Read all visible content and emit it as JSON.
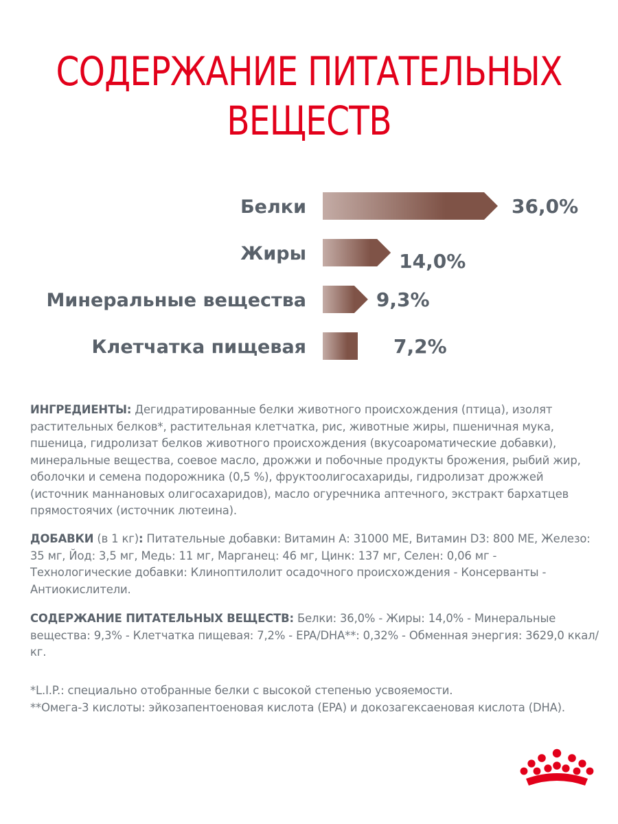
{
  "title": {
    "line1": "СОДЕРЖАНИЕ ПИТАТЕЛЬНЫХ",
    "line2": "ВЕЩЕСТВ"
  },
  "chart_data": {
    "type": "bar",
    "orientation": "horizontal",
    "categories": [
      "Белки",
      "Жиры",
      "Минеральные вещества",
      "Клетчатка пищевая"
    ],
    "values": [
      36.0,
      14.0,
      9.3,
      7.2
    ],
    "value_labels": [
      "36,0%",
      "14,0%",
      "9,3%",
      "7,2%"
    ],
    "unit": "%",
    "title": "СОДЕРЖАНИЕ ПИТАТЕЛЬНЫХ ВЕЩЕСТВ",
    "xlabel": "",
    "ylabel": "",
    "grid": false,
    "bar_gradient": [
      "#c4aca6",
      "#7f5347"
    ],
    "label_color": "#59616a"
  },
  "ingredients": {
    "label": "ИНГРЕДИЕНТЫ:",
    "text": " Дегидратированные белки животного происхождения (птица), изолят растительных белков*, растительная клетчатка, рис, животные жиры, пшеничная мука, пшеница, гидролизат белков животного происхождения (вкусоароматические добавки), минеральные вещества, соевое масло, дрожжи и побочные продукты брожения, рыбий жир, оболочки и семена подорожника (0,5 %), фруктоолигосахариды, гидролизат дрожжей (источник маннановых олигосахаридов), масло огуречника аптечного, экстракт бархатцев прямостоячих (источник лютеина)."
  },
  "additives": {
    "label": "ДОБАВКИ",
    "qualifier": " (в 1 кг)",
    "colon": ":",
    "text": " Питательные добавки: Витамин А: 31000 МЕ, Витамин D3: 800 МЕ, Железо: 35 мг, Йод: 3,5 мг, Медь: 11 мг, Марганец: 46 мг, Цинк: 137 мг, Селен: 0,06 мг - Технологические добавки: Клиноптилолит осадочного происхождения - Консерванты - Антиокислители."
  },
  "nutrients": {
    "label": "СОДЕРЖАНИЕ ПИТАТЕЛЬНЫХ ВЕЩЕСТВ:",
    "text": " Белки: 36,0% - Жиры: 14,0% - Минеральные вещества: 9,3% - Клетчатка пищевая: 7,2% - EPA/DHA**: 0,32% - Обменная энергия: 3629,0 ккал/кг."
  },
  "notes": {
    "line1": "*L.I.P.: специально отобранные белки с высокой степенью усвояемости.",
    "line2": "**Омега-3 кислоты: эйкозапентоеновая кислота (EPA) и докозагексаеновая кислота (DHA)."
  },
  "colors": {
    "title": "#e2001a",
    "text": "#6d747b",
    "bold_text": "#59616a",
    "logo": "#e2001a"
  },
  "logo": {
    "icon": "royal-crown-icon"
  }
}
